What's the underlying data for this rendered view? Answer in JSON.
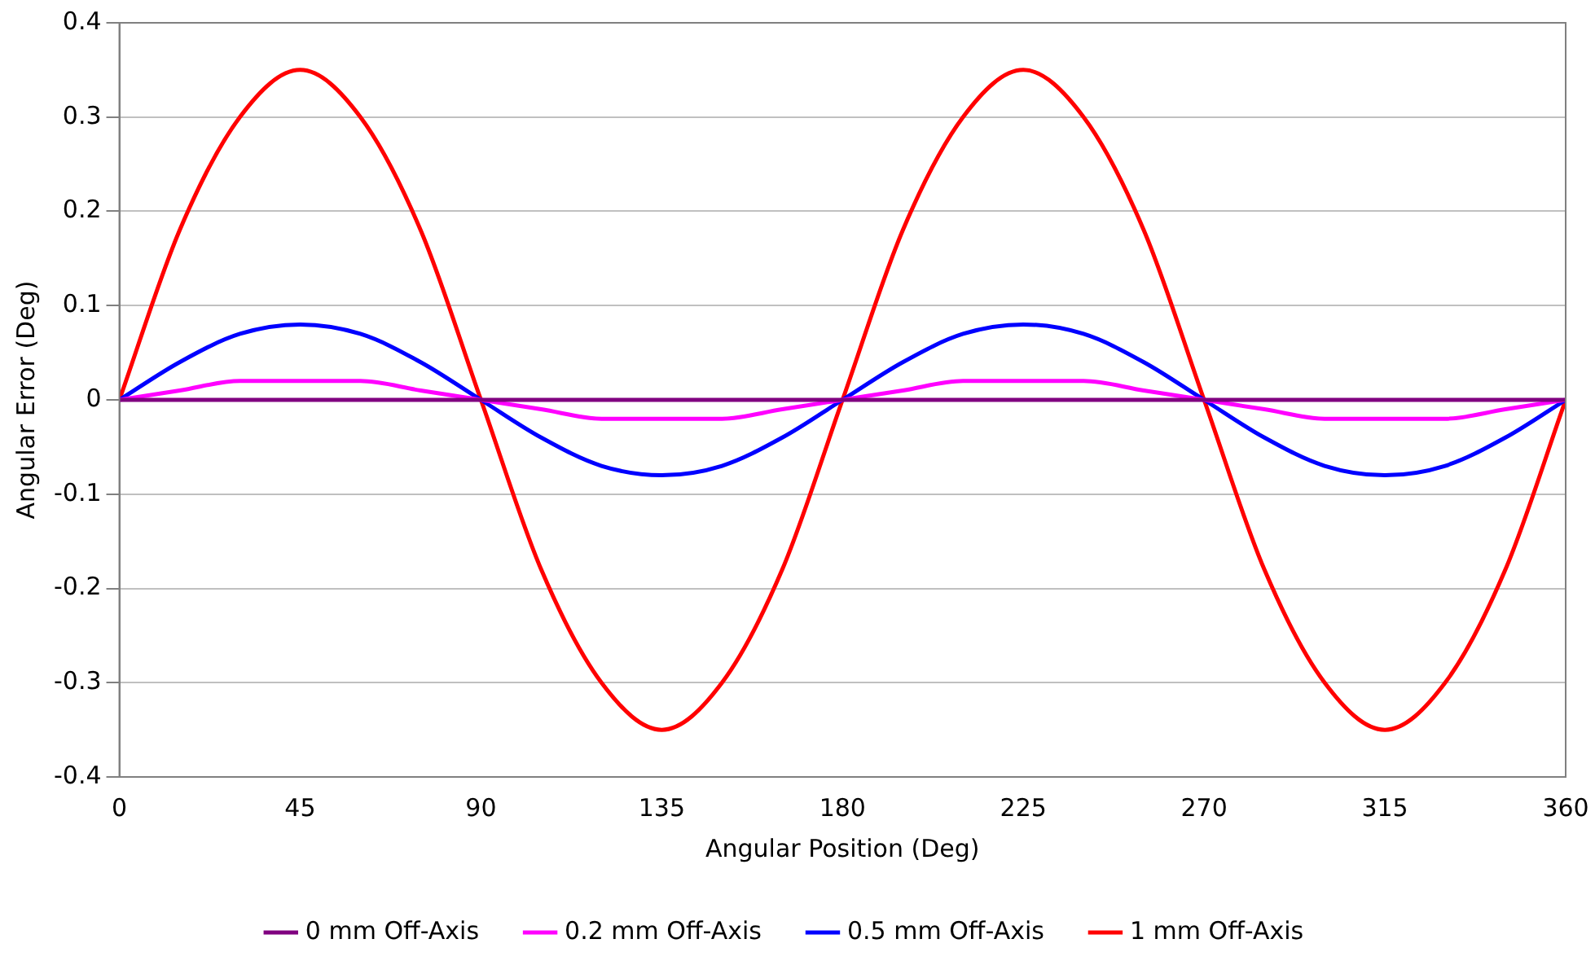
{
  "chart_data": {
    "type": "line",
    "xlabel": "Angular Position (Deg)",
    "ylabel": "Angular Error (Deg)",
    "x": [
      0,
      15,
      30,
      45,
      60,
      75,
      90,
      105,
      120,
      135,
      150,
      165,
      180,
      195,
      210,
      225,
      240,
      255,
      270,
      285,
      300,
      315,
      330,
      345,
      360
    ],
    "series": [
      {
        "name": "0 mm Off-Axis",
        "color": "#800080",
        "values": [
          0,
          0,
          0,
          0,
          0,
          0,
          0,
          0,
          0,
          0,
          0,
          0,
          0,
          0,
          0,
          0,
          0,
          0,
          0,
          0,
          0,
          0,
          0,
          0,
          0
        ]
      },
      {
        "name": "0.2 mm Off-Axis",
        "color": "#ff00ff",
        "values": [
          0,
          0.01,
          0.02,
          0.02,
          0.02,
          0.01,
          0,
          -0.01,
          -0.02,
          -0.02,
          -0.02,
          -0.01,
          0,
          0.01,
          0.02,
          0.02,
          0.02,
          0.01,
          0,
          -0.01,
          -0.02,
          -0.02,
          -0.02,
          -0.01,
          0
        ]
      },
      {
        "name": "0.5 mm Off-Axis",
        "color": "#0000ff",
        "values": [
          0,
          0.04,
          0.07,
          0.08,
          0.07,
          0.04,
          0,
          -0.04,
          -0.07,
          -0.08,
          -0.07,
          -0.04,
          0,
          0.04,
          0.07,
          0.08,
          0.07,
          0.04,
          0,
          -0.04,
          -0.07,
          -0.08,
          -0.07,
          -0.04,
          0
        ]
      },
      {
        "name": "1 mm Off-Axis",
        "color": "#ff0000",
        "values": [
          0,
          0.18,
          0.3,
          0.35,
          0.3,
          0.18,
          0,
          -0.18,
          -0.3,
          -0.35,
          -0.3,
          -0.18,
          0,
          0.18,
          0.3,
          0.35,
          0.3,
          0.18,
          0,
          -0.18,
          -0.3,
          -0.35,
          -0.3,
          -0.18,
          0
        ]
      }
    ],
    "xlim": [
      0,
      360
    ],
    "xticks": [
      0,
      45,
      90,
      135,
      180,
      225,
      270,
      315,
      360
    ],
    "ylim": [
      -0.4,
      0.4
    ],
    "yticks": [
      -0.4,
      -0.3,
      -0.2,
      -0.1,
      0,
      0.1,
      0.2,
      0.3,
      0.4
    ],
    "grid": "y",
    "legend": "bottom",
    "marker": "none",
    "line_style": "solid"
  }
}
